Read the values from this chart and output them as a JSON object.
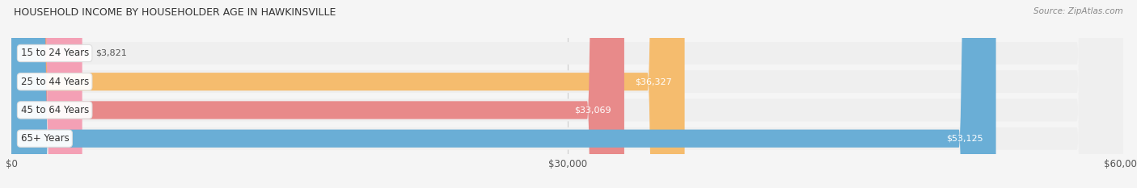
{
  "title": "HOUSEHOLD INCOME BY HOUSEHOLDER AGE IN HAWKINSVILLE",
  "source": "Source: ZipAtlas.com",
  "categories": [
    "15 to 24 Years",
    "25 to 44 Years",
    "45 to 64 Years",
    "65+ Years"
  ],
  "values": [
    3821,
    36327,
    33069,
    53125
  ],
  "bar_colors": [
    "#f4a0b5",
    "#f5bc6e",
    "#e88a8a",
    "#6aaed6"
  ],
  "bar_bg_color": "#efefef",
  "value_labels": [
    "$3,821",
    "$36,327",
    "$33,069",
    "$53,125"
  ],
  "xlim": [
    0,
    60000
  ],
  "xticks": [
    0,
    30000,
    60000
  ],
  "xtick_labels": [
    "$0",
    "$30,000",
    "$60,000"
  ],
  "figsize": [
    14.06,
    2.33
  ],
  "dpi": 100
}
